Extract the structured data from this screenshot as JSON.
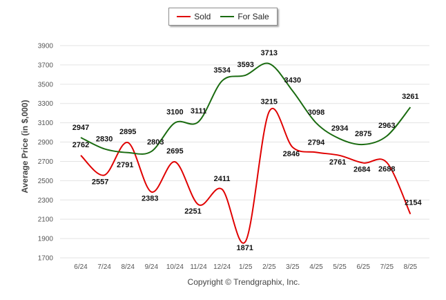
{
  "chart_data": {
    "type": "line",
    "categories": [
      "6/24",
      "7/24",
      "8/24",
      "9/24",
      "10/24",
      "11/24",
      "12/24",
      "1/25",
      "2/25",
      "3/25",
      "4/25",
      "5/25",
      "6/25",
      "7/25",
      "8/25"
    ],
    "series": [
      {
        "name": "Sold",
        "color": "#e00000",
        "values": [
          2762,
          2557,
          2895,
          2383,
          2695,
          2251,
          2411,
          1871,
          3215,
          2846,
          2794,
          2761,
          2684,
          2688,
          2154
        ],
        "labels": [
          "2762",
          "2557",
          "2895",
          "2383",
          "2695",
          "2251",
          "2411",
          "1871",
          "3215",
          "2846",
          "2794",
          "2761",
          "2684",
          "2688",
          "2154"
        ]
      },
      {
        "name": "For Sale",
        "color": "#1a6b10",
        "values": [
          2947,
          2830,
          2791,
          2803,
          3100,
          3111,
          3534,
          3593,
          3713,
          3430,
          3098,
          2934,
          2875,
          2963,
          3261
        ],
        "labels": [
          "2947",
          "2830",
          "2791",
          "2803",
          "3100",
          "3111",
          "3534",
          "3593",
          "3713",
          "3430",
          "3098",
          "2934",
          "2875",
          "2963",
          "3261"
        ]
      }
    ],
    "ylabel": "Average Price (in $,000)",
    "xlabel": "",
    "ylim": [
      1700,
      3900
    ],
    "yticks": [
      "1700",
      "1900",
      "2100",
      "2300",
      "2500",
      "2700",
      "2900",
      "3100",
      "3300",
      "3500",
      "3700",
      "3900"
    ],
    "grid": true,
    "legend_position": "top-center"
  },
  "footer": {
    "copyright": "Copyright © Trendgraphix, Inc."
  }
}
